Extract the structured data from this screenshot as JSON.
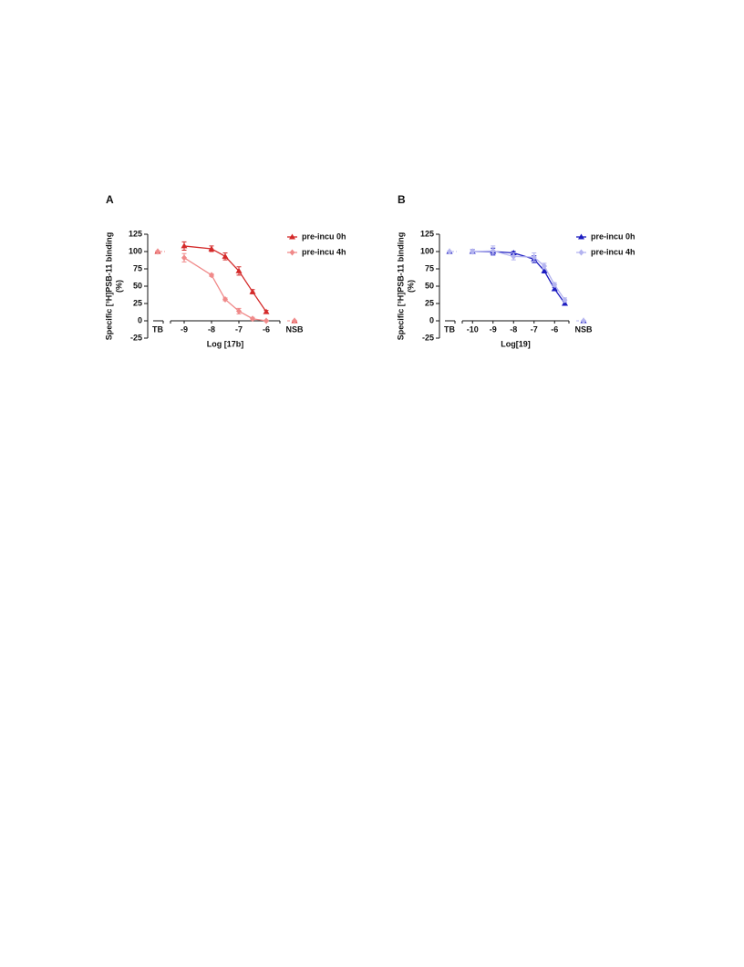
{
  "chart_data": [
    {
      "type": "line",
      "panel": "A",
      "x_label": "Log [17b]",
      "y_label": [
        "Specific [³H]PSB-11 binding",
        "(%)"
      ],
      "break_labels": [
        "TB",
        "NSB"
      ],
      "xlim": [
        -9.5,
        -5.5
      ],
      "xticks": [
        -9,
        -8,
        -7,
        -6
      ],
      "ylim": [
        -25,
        125
      ],
      "yticks": [
        -25,
        0,
        25,
        50,
        75,
        100,
        125
      ],
      "series": [
        {
          "name": "pre-incu 0h",
          "color": "#d42a2a",
          "marker": "triangle",
          "x": [
            -9,
            -8,
            -7.5,
            -7,
            -6.5,
            -6
          ],
          "values": [
            108,
            104,
            93,
            72,
            42,
            13
          ],
          "errors": [
            6,
            4,
            5,
            6,
            3,
            2
          ],
          "tb": 100,
          "nsb": 0
        },
        {
          "name": "pre-incu 4h",
          "color": "#f08a8a",
          "marker": "diamond",
          "x": [
            -9,
            -8,
            -7.5,
            -7,
            -6.5,
            -6
          ],
          "values": [
            91,
            66,
            31,
            14,
            3,
            0
          ],
          "errors": [
            6,
            2,
            2,
            4,
            2,
            1
          ],
          "tb": 100,
          "nsb": 0
        }
      ]
    },
    {
      "type": "line",
      "panel": "B",
      "x_label": "Log[19]",
      "y_label": [
        "Specific [³H]PSB-11 binding",
        "(%)"
      ],
      "break_labels": [
        "TB",
        "NSB"
      ],
      "xlim": [
        -10.5,
        -5.3
      ],
      "xticks": [
        -10,
        -9,
        -8,
        -7,
        -6
      ],
      "ylim": [
        -25,
        125
      ],
      "yticks": [
        -25,
        0,
        25,
        50,
        75,
        100,
        125
      ],
      "series": [
        {
          "name": "pre-incu 0h",
          "color": "#1c1cc0",
          "marker": "triangle",
          "x": [
            -10,
            -9,
            -8,
            -7,
            -6.5,
            -6,
            -5.5
          ],
          "values": [
            100,
            100,
            98,
            89,
            72,
            46,
            25
          ],
          "errors": [
            3,
            5,
            2,
            5,
            3,
            2,
            2
          ],
          "tb": 100,
          "nsb": 0
        },
        {
          "name": "pre-incu 4h",
          "color": "#b4b4f0",
          "marker": "diamond",
          "x": [
            -10,
            -9,
            -8,
            -7,
            -6.5,
            -6,
            -5.5
          ],
          "values": [
            100,
            101,
            93,
            92,
            79,
            52,
            30
          ],
          "errors": [
            3,
            7,
            5,
            6,
            4,
            3,
            3
          ],
          "tb": 100,
          "nsb": 0
        }
      ]
    }
  ]
}
